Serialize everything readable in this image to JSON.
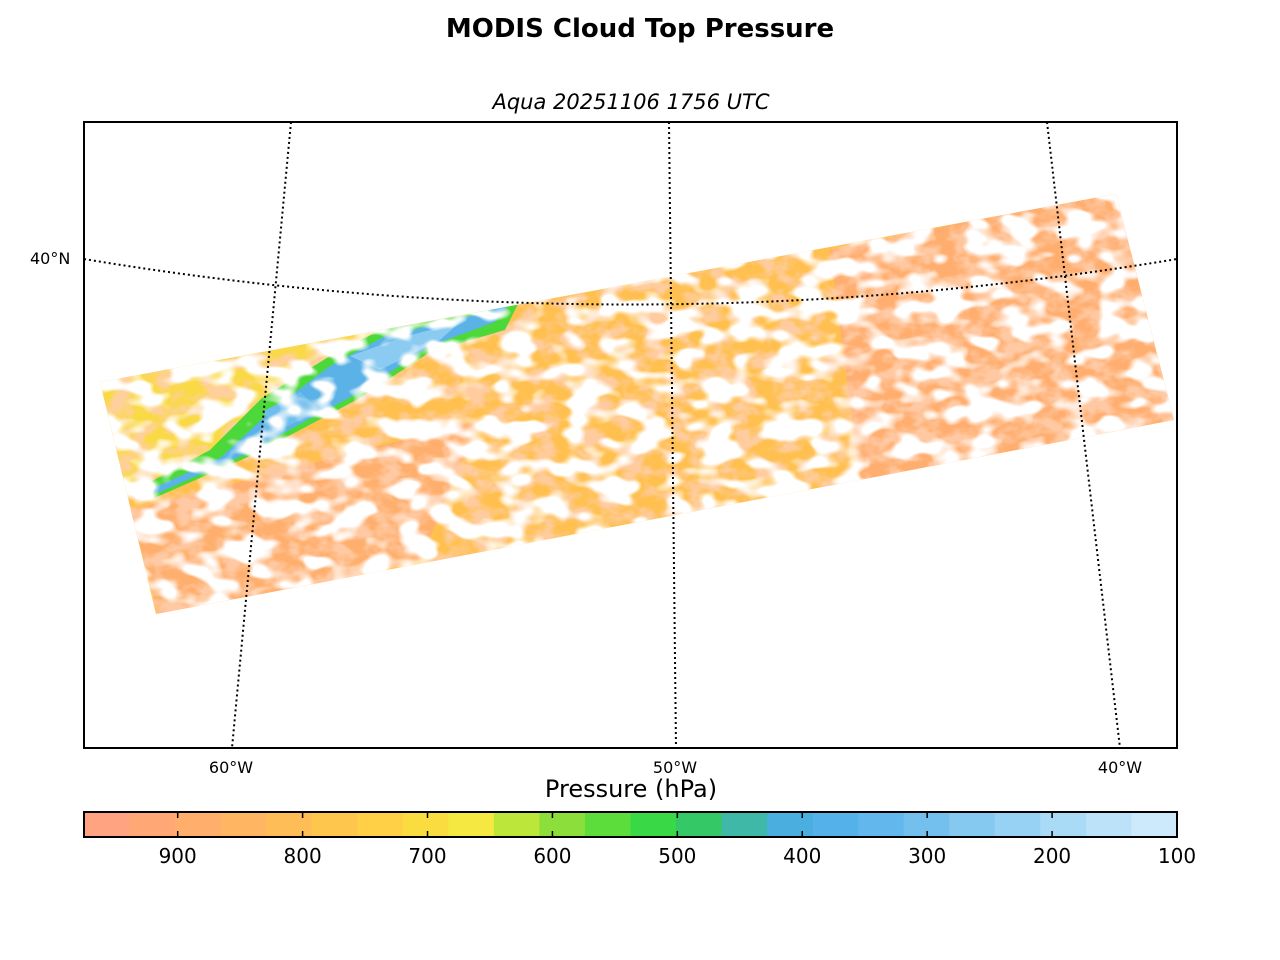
{
  "title": "MODIS Cloud Top Pressure",
  "subtitle": "Aqua 20251106 1756 UTC",
  "map": {
    "lat_label": "40°N",
    "lon_labels": [
      "60°W",
      "50°W",
      "40°W"
    ]
  },
  "colorbar": {
    "label": "Pressure (hPa)",
    "min": 100,
    "max": 975,
    "ticks": [
      900,
      800,
      700,
      600,
      500,
      400,
      300,
      200,
      100
    ],
    "colors": [
      "#ffa380",
      "#ffa875",
      "#ffae6b",
      "#ffb561",
      "#ffbd57",
      "#ffc64e",
      "#ffd046",
      "#fbdc40",
      "#f5e840",
      "#bde63a",
      "#8cdf3a",
      "#5cdd3c",
      "#38d846",
      "#35c866",
      "#40b8a8",
      "#4aaedf",
      "#55b1ea",
      "#62b8ec",
      "#73c0ef",
      "#85c9f1",
      "#97d2f4",
      "#a9daf6",
      "#bbe2f9",
      "#cceafb"
    ]
  },
  "chart_data": {
    "type": "heatmap",
    "title": "MODIS Cloud Top Pressure",
    "subtitle": "Aqua 20251106 1756 UTC",
    "variable": "Pressure (hPa)",
    "colorbar_range": [
      100,
      975
    ],
    "grid": {
      "meridians": [
        "60°W",
        "50°W",
        "40°W"
      ],
      "parallels": [
        "40°N"
      ]
    }
  }
}
